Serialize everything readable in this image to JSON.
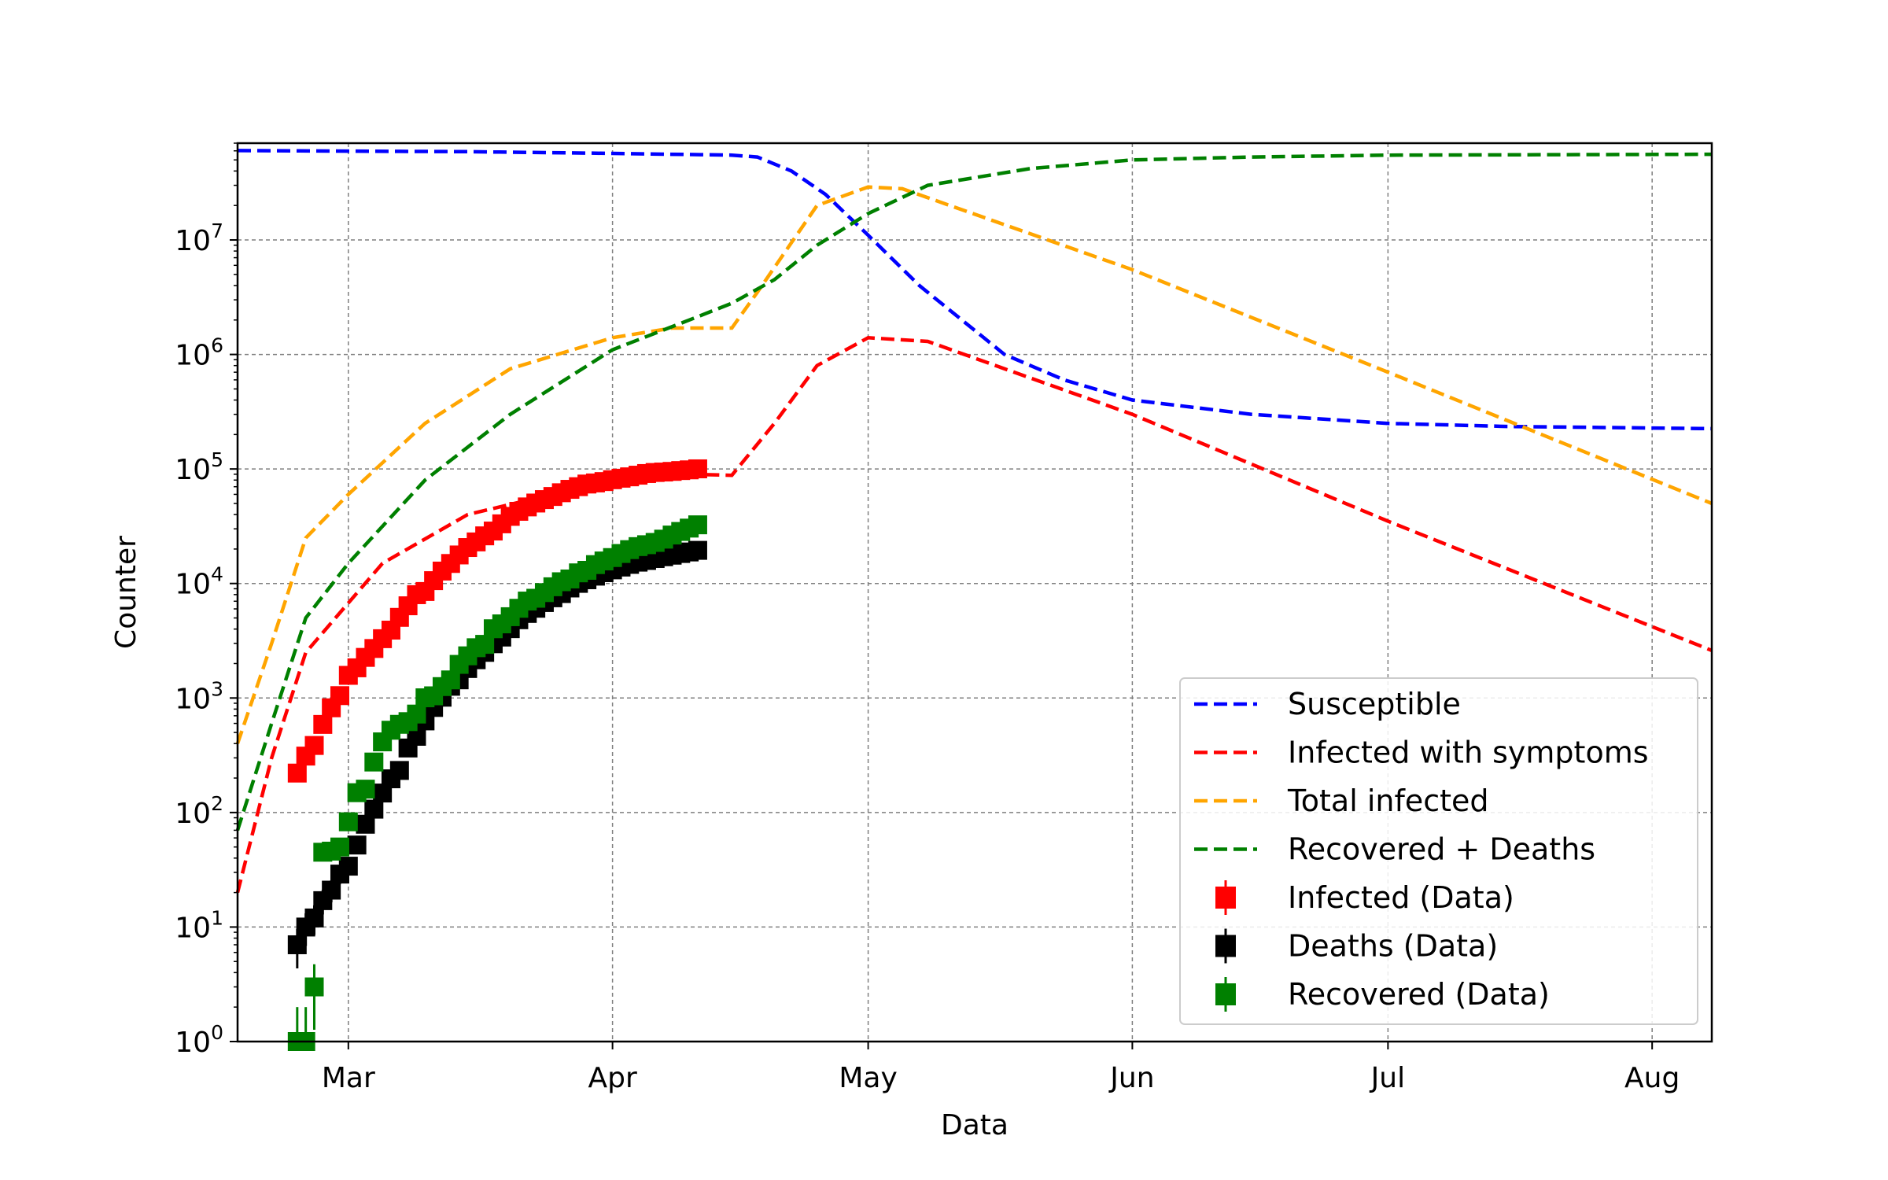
{
  "chart_data": {
    "type": "line",
    "xlabel": "Data",
    "ylabel": "Counter",
    "x_axis": {
      "min": "2020-02-17",
      "max": "2020-08-08",
      "ticks": [
        {
          "date": "2020-03-01",
          "label": "Mar"
        },
        {
          "date": "2020-04-01",
          "label": "Apr"
        },
        {
          "date": "2020-05-01",
          "label": "May"
        },
        {
          "date": "2020-06-01",
          "label": "Jun"
        },
        {
          "date": "2020-07-01",
          "label": "Jul"
        },
        {
          "date": "2020-08-01",
          "label": "Aug"
        }
      ]
    },
    "y_axis": {
      "scale": "log",
      "min": 1,
      "max": 70000000,
      "ticks": [
        {
          "value": 1,
          "base": "10",
          "exp": "0"
        },
        {
          "value": 10,
          "base": "10",
          "exp": "1"
        },
        {
          "value": 100,
          "base": "10",
          "exp": "2"
        },
        {
          "value": 1000,
          "base": "10",
          "exp": "3"
        },
        {
          "value": 10000,
          "base": "10",
          "exp": "4"
        },
        {
          "value": 100000,
          "base": "10",
          "exp": "5"
        },
        {
          "value": 1000000,
          "base": "10",
          "exp": "6"
        },
        {
          "value": 10000000,
          "base": "10",
          "exp": "7"
        }
      ]
    },
    "grid": true,
    "legend_position": "lower-right",
    "model_series": [
      {
        "name": "Susceptible",
        "color": "#0000ff",
        "style": "dashed",
        "points": [
          [
            "2020-02-17",
            60300000
          ],
          [
            "2020-03-15",
            59000000
          ],
          [
            "2020-04-01",
            57000000
          ],
          [
            "2020-04-15",
            55000000
          ],
          [
            "2020-04-18",
            53000000
          ],
          [
            "2020-04-22",
            40000000
          ],
          [
            "2020-04-26",
            25000000
          ],
          [
            "2020-05-01",
            11000000
          ],
          [
            "2020-05-07",
            4000000
          ],
          [
            "2020-05-12",
            2000000
          ],
          [
            "2020-05-17",
            1000000
          ],
          [
            "2020-05-24",
            600000
          ],
          [
            "2020-06-01",
            400000
          ],
          [
            "2020-06-15",
            300000
          ],
          [
            "2020-07-01",
            250000
          ],
          [
            "2020-07-15",
            235000
          ],
          [
            "2020-08-08",
            225000
          ]
        ]
      },
      {
        "name": "Infected with symptoms",
        "color": "#ff0000",
        "style": "dashed",
        "points": [
          [
            "2020-02-17",
            20
          ],
          [
            "2020-02-21",
            300
          ],
          [
            "2020-02-25",
            2500
          ],
          [
            "2020-03-05",
            15000
          ],
          [
            "2020-03-15",
            40000
          ],
          [
            "2020-04-01",
            80000
          ],
          [
            "2020-04-10",
            90000
          ],
          [
            "2020-04-15",
            88000
          ],
          [
            "2020-04-20",
            250000
          ],
          [
            "2020-04-25",
            800000
          ],
          [
            "2020-05-01",
            1400000
          ],
          [
            "2020-05-08",
            1300000
          ],
          [
            "2020-06-01",
            300000
          ],
          [
            "2020-07-01",
            35000
          ],
          [
            "2020-08-08",
            2600
          ]
        ]
      },
      {
        "name": "Total infected",
        "color": "#ffa500",
        "style": "dashed",
        "points": [
          [
            "2020-02-17",
            400
          ],
          [
            "2020-02-21",
            3000
          ],
          [
            "2020-02-25",
            25000
          ],
          [
            "2020-03-01",
            60000
          ],
          [
            "2020-03-10",
            250000
          ],
          [
            "2020-03-20",
            750000
          ],
          [
            "2020-04-01",
            1400000
          ],
          [
            "2020-04-08",
            1700000
          ],
          [
            "2020-04-15",
            1700000
          ],
          [
            "2020-04-18",
            3500000
          ],
          [
            "2020-04-25",
            20000000
          ],
          [
            "2020-05-01",
            29000000
          ],
          [
            "2020-05-05",
            28000000
          ],
          [
            "2020-06-01",
            5500000
          ],
          [
            "2020-07-01",
            700000
          ],
          [
            "2020-08-08",
            50000
          ]
        ]
      },
      {
        "name": "Recovered + Deaths",
        "color": "#008000",
        "style": "dashed",
        "points": [
          [
            "2020-02-17",
            70
          ],
          [
            "2020-02-21",
            600
          ],
          [
            "2020-02-25",
            5000
          ],
          [
            "2020-03-01",
            15000
          ],
          [
            "2020-03-10",
            80000
          ],
          [
            "2020-03-20",
            300000
          ],
          [
            "2020-04-01",
            1100000
          ],
          [
            "2020-04-10",
            2000000
          ],
          [
            "2020-04-15",
            2800000
          ],
          [
            "2020-04-20",
            4500000
          ],
          [
            "2020-04-25",
            9000000
          ],
          [
            "2020-05-01",
            17000000
          ],
          [
            "2020-05-08",
            30000000
          ],
          [
            "2020-05-20",
            42000000
          ],
          [
            "2020-06-01",
            50000000
          ],
          [
            "2020-06-15",
            53000000
          ],
          [
            "2020-07-01",
            55000000
          ],
          [
            "2020-08-08",
            56000000
          ]
        ]
      }
    ],
    "data_series": [
      {
        "name": "Infected (Data)",
        "color": "#ff0000",
        "start": "2020-02-24",
        "values": [
          221,
          311,
          385,
          588,
          821,
          1049,
          1577,
          1835,
          2263,
          2706,
          3296,
          3916,
          5061,
          6387,
          7985,
          8514,
          10590,
          12839,
          14955,
          17750,
          20603,
          23073,
          26062,
          28710,
          33190,
          38549,
          42681,
          46638,
          50418,
          54030,
          57521,
          62013,
          66414,
          70065,
          73880,
          75528,
          77635,
          80572,
          83049,
          85388,
          88274,
          91246,
          93187,
          94067,
          95262,
          96877,
          98273,
          100269
        ]
      },
      {
        "name": "Deaths (Data)",
        "color": "#000000",
        "start": "2020-02-24",
        "values": [
          7,
          10,
          12,
          17,
          21,
          29,
          34,
          52,
          79,
          107,
          148,
          197,
          233,
          366,
          463,
          631,
          827,
          1016,
          1266,
          1441,
          1809,
          2158,
          2503,
          2978,
          3405,
          4032,
          4825,
          5476,
          6077,
          6820,
          7503,
          8165,
          9134,
          10023,
          10779,
          11591,
          12428,
          13155,
          13915,
          14681,
          15362,
          15887,
          16523,
          17127,
          17669,
          18279,
          18849,
          19468
        ]
      },
      {
        "name": "Recovered (Data)",
        "color": "#008000",
        "start": "2020-02-24",
        "values": [
          1,
          1,
          3,
          45,
          46,
          50,
          83,
          149,
          160,
          276,
          414,
          523,
          589,
          622,
          724,
          1004,
          1045,
          1258,
          1439,
          1966,
          2335,
          2749,
          2941,
          4025,
          4440,
          5129,
          6072,
          7024,
          7432,
          8326,
          9362,
          10361,
          10950,
          12384,
          13030,
          14620,
          15729,
          16847,
          18278,
          19758,
          20996,
          21815,
          22837,
          24392,
          26491,
          28470,
          30455,
          32534
        ]
      }
    ]
  },
  "legend": {
    "items": [
      {
        "label": "Susceptible",
        "kind": "line",
        "color": "#0000ff"
      },
      {
        "label": "Infected with symptoms",
        "kind": "line",
        "color": "#ff0000"
      },
      {
        "label": "Total infected",
        "kind": "line",
        "color": "#ffa500"
      },
      {
        "label": "Recovered + Deaths",
        "kind": "line",
        "color": "#008000"
      },
      {
        "label": "Infected (Data)",
        "kind": "marker",
        "color": "#ff0000"
      },
      {
        "label": "Deaths (Data)",
        "kind": "marker",
        "color": "#000000"
      },
      {
        "label": "Recovered (Data)",
        "kind": "marker",
        "color": "#008000"
      }
    ]
  }
}
